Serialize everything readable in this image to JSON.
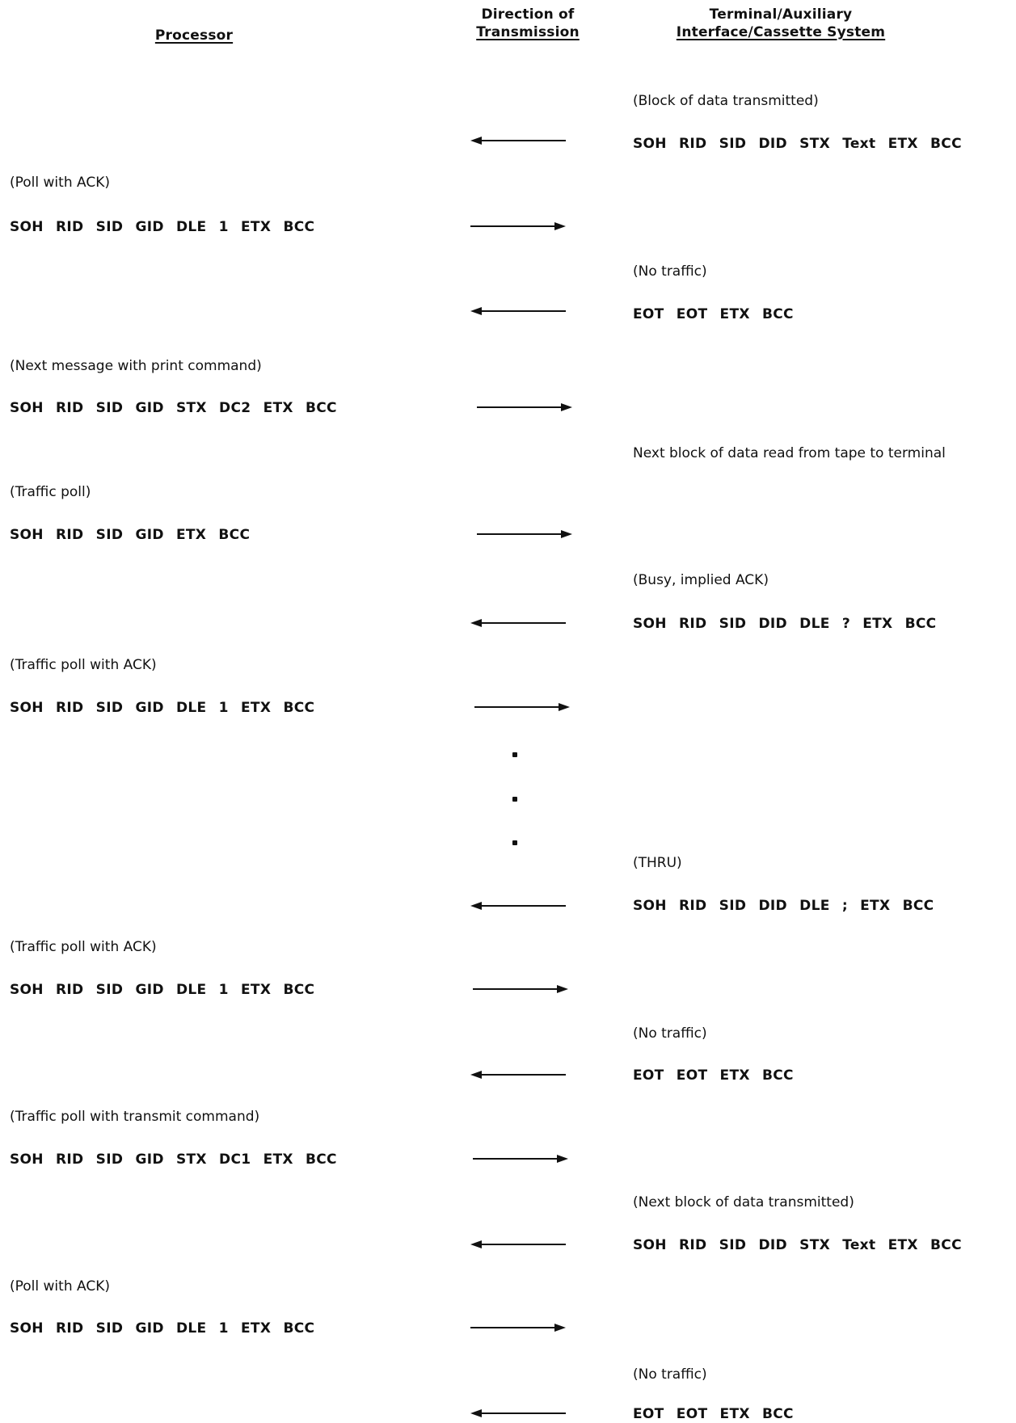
{
  "headers": {
    "processor": "Processor",
    "direction_line1": "Direction of",
    "direction_line2": "Transmission",
    "terminal_line1": "Terminal/Auxiliary",
    "terminal_line2": "Interface/Cassette System"
  },
  "rows": [
    {
      "note": "(Block of data transmitted)",
      "frame": "SOH RID SID DID STX Text ETX BCC"
    },
    {
      "note": "(Poll with ACK)",
      "frame": "SOH RID SID GID DLE 1 ETX BCC"
    },
    {
      "note": "(No traffic)",
      "frame": "EOT EOT ETX BCC"
    },
    {
      "note": "(Next message with print command)",
      "frame": "SOH RID SID GID STX DC2 ETX BCC"
    },
    {
      "note": "Next block of data read from tape to terminal"
    },
    {
      "note": "(Traffic poll)",
      "frame": "SOH RID SID GID ETX BCC"
    },
    {
      "note": "(Busy, implied ACK)",
      "frame": "SOH RID SID DID DLE ? ETX BCC"
    },
    {
      "note": "(Traffic poll with ACK)",
      "frame": "SOH RID SID GID DLE 1 ETX BCC"
    },
    {
      "note": "(THRU)",
      "frame": "SOH RID SID DID DLE ; ETX BCC"
    },
    {
      "note": "(Traffic poll with ACK)",
      "frame": "SOH RID SID GID DLE 1 ETX BCC"
    },
    {
      "note": "(No traffic)",
      "frame": "EOT EOT ETX BCC"
    },
    {
      "note": "(Traffic poll with transmit command)",
      "frame": "SOH RID SID GID STX DC1 ETX BCC"
    },
    {
      "note": "(Next block of data transmitted)",
      "frame": "SOH RID SID DID STX Text ETX BCC"
    },
    {
      "note": "(Poll with ACK)",
      "frame": "SOH RID SID GID DLE 1 ETX BCC"
    },
    {
      "note": "(No traffic)",
      "frame": "EOT EOT ETX BCC"
    }
  ]
}
